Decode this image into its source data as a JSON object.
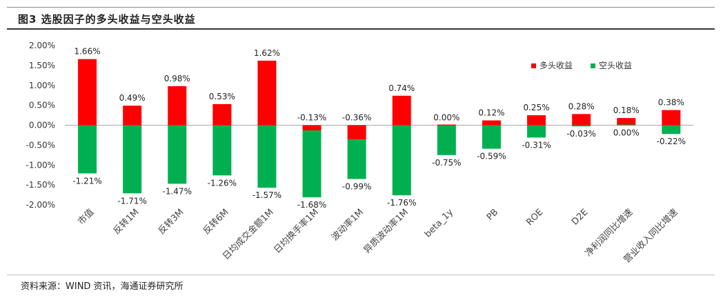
{
  "header": {
    "title": "图3  选股因子的多头收益与空头收益"
  },
  "source": "资料来源：WIND 资讯，海通证券研究所",
  "colors": {
    "long": "#ff0000",
    "short": "#00b050"
  },
  "chart_data": {
    "type": "bar",
    "stacked": true,
    "title": "图3  选股因子的多头收益与空头收益",
    "categories": [
      "市值",
      "反转1M",
      "反转3M",
      "反转6M",
      "日均成交金额1M",
      "日均换手率1M",
      "波动率1M",
      "异质波动率1M",
      "beta_1y",
      "PB",
      "ROE",
      "D2E",
      "净利润同比增速",
      "营业收入同比增速"
    ],
    "series": [
      {
        "name": "多头收益",
        "values": [
          1.66,
          0.49,
          0.98,
          0.53,
          1.62,
          -0.13,
          -0.36,
          0.74,
          0.0,
          0.12,
          0.25,
          0.28,
          0.18,
          0.38
        ]
      },
      {
        "name": "空头收益",
        "values": [
          -1.21,
          -1.71,
          -1.47,
          -1.26,
          -1.57,
          -1.68,
          -0.99,
          -1.76,
          -0.75,
          -0.59,
          -0.31,
          -0.03,
          0.0,
          -0.22
        ]
      }
    ],
    "long_labels": [
      "1.66%",
      "0.49%",
      "0.98%",
      "0.53%",
      "1.62%",
      "-0.13%",
      "-0.36%",
      "0.74%",
      "0.00%",
      "0.12%",
      "0.25%",
      "0.28%",
      "0.18%",
      "0.38%"
    ],
    "short_labels": [
      "-1.21%",
      "-1.71%",
      "-1.47%",
      "-1.26%",
      "-1.57%",
      "-1.68%",
      "-0.99%",
      "-1.76%",
      "-0.75%",
      "-0.59%",
      "-0.31%",
      "-0.03%",
      "0.00%",
      "-0.22%"
    ],
    "yticks": [
      "2.00%",
      "1.50%",
      "1.00%",
      "0.50%",
      "0.00%",
      "-0.50%",
      "-1.00%",
      "-1.50%",
      "-2.00%"
    ],
    "ylim": [
      -2.0,
      2.0
    ],
    "legend_position": "top-right",
    "xlabel": "",
    "ylabel": ""
  }
}
